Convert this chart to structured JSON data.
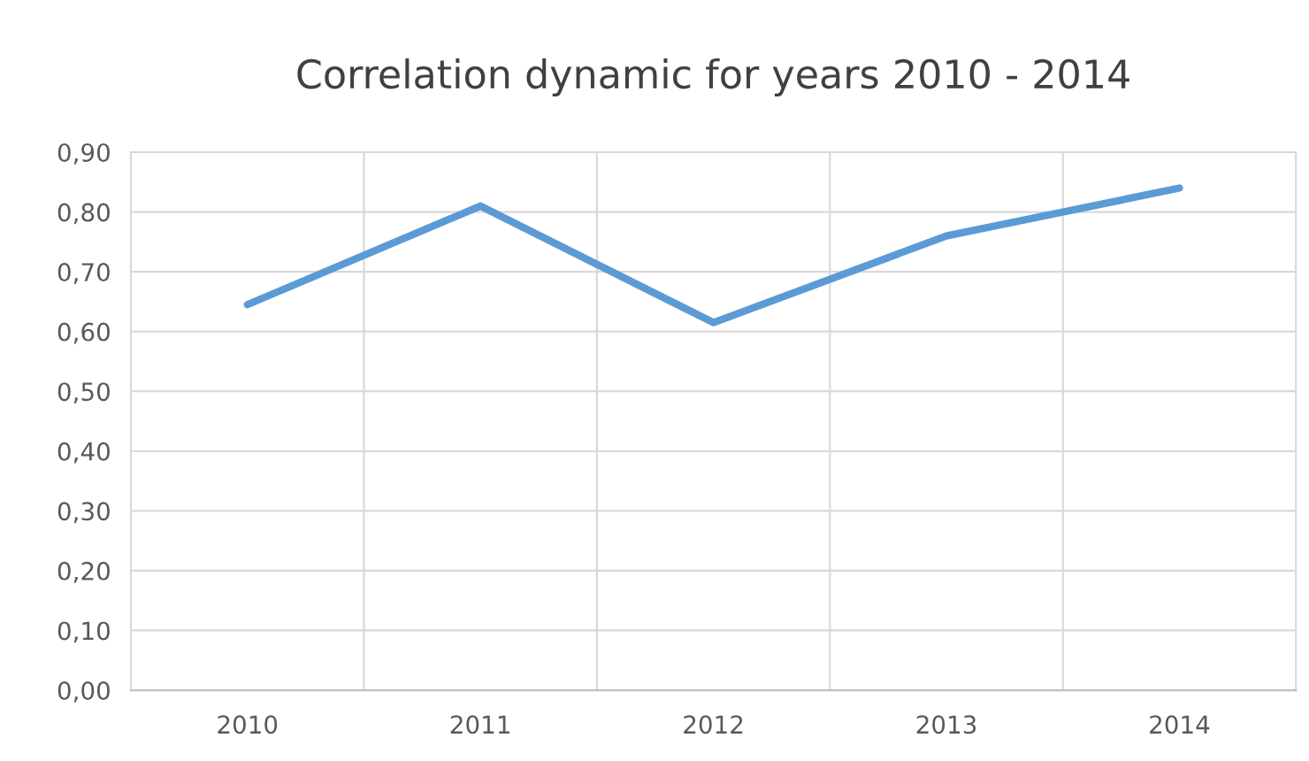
{
  "chart_data": {
    "type": "line",
    "title": "Correlation dynamic for years 2010 - 2014",
    "categories": [
      "2010",
      "2011",
      "2012",
      "2013",
      "2014"
    ],
    "series": [
      {
        "color": "#5b9bd5",
        "values": [
          0.645,
          0.81,
          0.615,
          0.76,
          0.84
        ]
      }
    ],
    "ylim": [
      0,
      0.9
    ],
    "yticks": [
      {
        "value": 0,
        "label": "0,00"
      },
      {
        "value": 0.1,
        "label": "0,10"
      },
      {
        "value": 0.2,
        "label": "0,20"
      },
      {
        "value": 0.3,
        "label": "0,30"
      },
      {
        "value": 0.4,
        "label": "0,40"
      },
      {
        "value": 0.5,
        "label": "0,50"
      },
      {
        "value": 0.6,
        "label": "0,60"
      },
      {
        "value": 0.7,
        "label": "0,70"
      },
      {
        "value": 0.8,
        "label": "0,80"
      },
      {
        "value": 0.9,
        "label": "0,90"
      }
    ],
    "grid": true,
    "marker": "none",
    "line_style": "solid"
  }
}
